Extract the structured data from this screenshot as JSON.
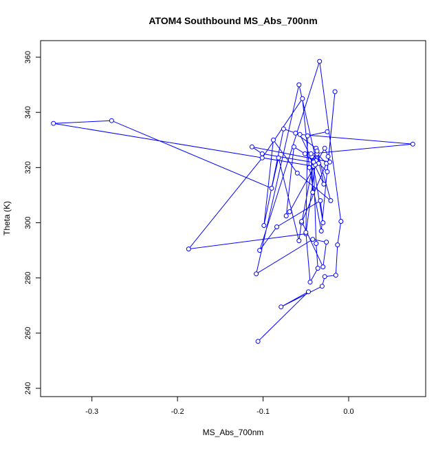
{
  "chart_data": {
    "type": "scatter",
    "title": "ATOM4 Southbound MS_Abs_700nm",
    "xlabel": "MS_Abs_700nm",
    "ylabel": "Theta (K)",
    "xlim": [
      -0.36,
      0.09
    ],
    "ylim": [
      237,
      366
    ],
    "x_ticks": [
      -0.3,
      -0.2,
      -0.1,
      0.0
    ],
    "x_tick_labels": [
      "-0.3",
      "-0.2",
      "-0.1",
      "0.0"
    ],
    "y_ticks": [
      240,
      260,
      280,
      300,
      320,
      340,
      360
    ],
    "y_tick_labels": [
      "240",
      "260",
      "280",
      "300",
      "320",
      "340",
      "360"
    ],
    "grid": false,
    "series": [
      {
        "color": "#0000ff",
        "markers": "open-circle",
        "connected": true,
        "x": [
          -0.106,
          -0.047,
          -0.079,
          -0.031,
          -0.028,
          -0.015,
          -0.013,
          -0.009,
          -0.034,
          -0.104,
          -0.084,
          -0.033,
          -0.03,
          -0.043,
          -0.042,
          -0.044,
          0.075,
          -0.057,
          -0.029,
          -0.037,
          -0.026,
          -0.055,
          -0.038,
          -0.062,
          -0.076,
          -0.099,
          -0.088,
          -0.06,
          -0.021,
          -0.037,
          -0.05,
          -0.187,
          -0.101,
          -0.054,
          -0.046,
          -0.032,
          -0.016,
          -0.025,
          -0.038,
          -0.058,
          -0.108,
          -0.042,
          -0.026,
          -0.03,
          -0.055,
          -0.058,
          -0.082,
          -0.09,
          -0.277,
          -0.345,
          -0.041,
          -0.035,
          -0.101,
          -0.113,
          -0.022,
          -0.024,
          -0.028,
          -0.039,
          -0.069,
          -0.073,
          -0.064,
          -0.051,
          -0.041,
          -0.038,
          -0.036,
          -0.045,
          -0.05,
          -0.048,
          -0.025
        ],
        "y": [
          257,
          275,
          269.5,
          277,
          280.5,
          281,
          292,
          300.5,
          358.5,
          290,
          298.5,
          308,
          300,
          324,
          311,
          325,
          328.5,
          332,
          314,
          325,
          321.5,
          300,
          327,
          332.5,
          334,
          299,
          330,
          318,
          308,
          326,
          296,
          290.5,
          323.5,
          345,
          320,
          297,
          347.5,
          318.5,
          322.5,
          350,
          281.5,
          294,
          293,
          284,
          300.5,
          293.5,
          323.5,
          312.5,
          337,
          336,
          320.5,
          321.5,
          325,
          327.5,
          322,
          324,
          327,
          321,
          304,
          302.5,
          327.5,
          325,
          322,
          292.5,
          283.5,
          278.5,
          296.5,
          331.5,
          333
        ]
      }
    ]
  }
}
